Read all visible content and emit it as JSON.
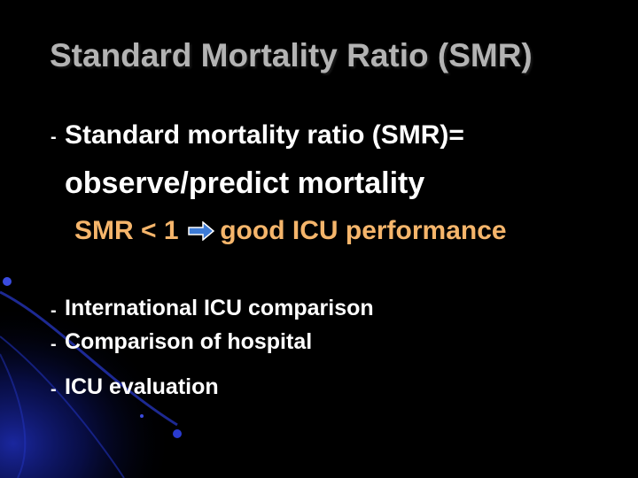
{
  "slide": {
    "title": "Standard Mortality Ratio (SMR)",
    "lines": {
      "definition": "Standard mortality ratio (SMR)=",
      "formula": "observe/predict mortality",
      "smr_lhs": "SMR < 1",
      "smr_rhs": "good ICU performance",
      "bullet_1": "International ICU comparison",
      "bullet_2": "Comparison of hospital",
      "bullet_3": "ICU evaluation"
    },
    "bullet_marker": "-",
    "colors": {
      "background": "#000000",
      "title": "#b3b3b3",
      "body_text": "#ffffff",
      "highlight_text": "#f5b56b",
      "arrow": "#3d7bd6",
      "decoration": "#1a2fa8"
    },
    "icons": [
      "right-arrow-icon"
    ]
  }
}
